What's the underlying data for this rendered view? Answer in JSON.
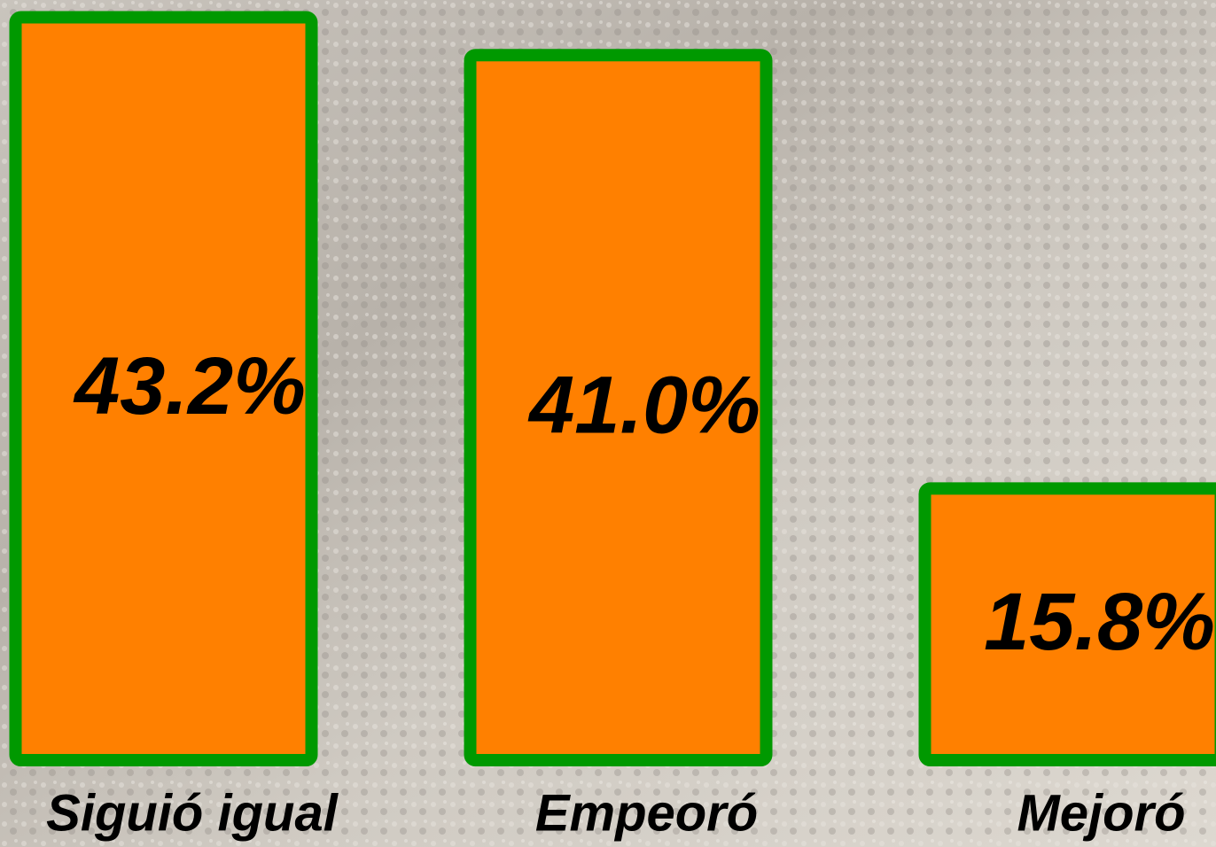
{
  "chart_data": {
    "type": "bar",
    "categories": [
      "Siguió igual",
      "Empeoró",
      "Mejoró"
    ],
    "values": [
      43.2,
      41.0,
      15.8
    ],
    "value_labels": [
      "43.2%",
      "41.0%",
      "15.8%"
    ],
    "color": "#ff8000",
    "edge_color": "#009900",
    "ylim": [
      0,
      44
    ]
  }
}
